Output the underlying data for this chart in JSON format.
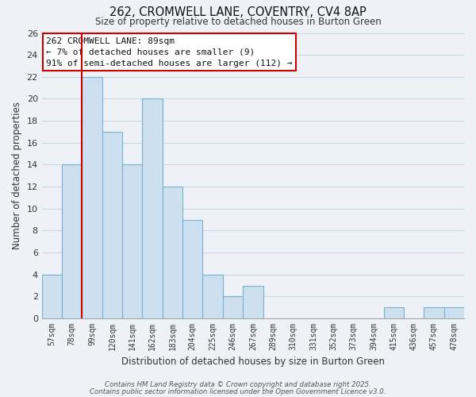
{
  "title1": "262, CROMWELL LANE, COVENTRY, CV4 8AP",
  "title2": "Size of property relative to detached houses in Burton Green",
  "xlabel": "Distribution of detached houses by size in Burton Green",
  "ylabel": "Number of detached properties",
  "categories": [
    "57sqm",
    "78sqm",
    "99sqm",
    "120sqm",
    "141sqm",
    "162sqm",
    "183sqm",
    "204sqm",
    "225sqm",
    "246sqm",
    "267sqm",
    "289sqm",
    "310sqm",
    "331sqm",
    "352sqm",
    "373sqm",
    "394sqm",
    "415sqm",
    "436sqm",
    "457sqm",
    "478sqm"
  ],
  "values": [
    4,
    14,
    22,
    17,
    14,
    20,
    12,
    9,
    4,
    2,
    3,
    0,
    0,
    0,
    0,
    0,
    0,
    1,
    0,
    1,
    1
  ],
  "bar_color": "#cce0f0",
  "bar_edge_color": "#7aafd4",
  "grid_color": "#c8d8e8",
  "background_color": "#eef2f7",
  "vline_color": "#cc0000",
  "annotation_title": "262 CROMWELL LANE: 89sqm",
  "annotation_line1": "← 7% of detached houses are smaller (9)",
  "annotation_line2": "91% of semi-detached houses are larger (112) →",
  "annotation_box_color": "#ffffff",
  "annotation_box_edge": "#cc0000",
  "ylim": [
    0,
    26
  ],
  "yticks": [
    0,
    2,
    4,
    6,
    8,
    10,
    12,
    14,
    16,
    18,
    20,
    22,
    24,
    26
  ],
  "footnote1": "Contains HM Land Registry data © Crown copyright and database right 2025.",
  "footnote2": "Contains public sector information licensed under the Open Government Licence v3.0."
}
